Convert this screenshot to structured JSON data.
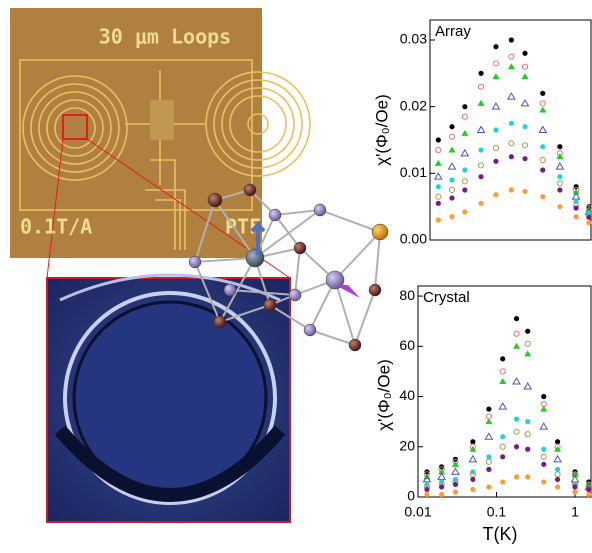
{
  "images": {
    "photo_labels": [
      "30 μm Loops",
      "0.1T/A",
      "PTF"
    ]
  },
  "chart_data": [
    {
      "type": "scatter",
      "annotation": "Array",
      "ylabel": "χ'(Φ₀/Oe)",
      "xscale": "log",
      "xlim": [
        0.01,
        1.6
      ],
      "ylim": [
        0,
        0.033
      ],
      "yticks": [
        {
          "value": 0,
          "label": "0.00"
        },
        {
          "value": 0.01,
          "label": "0.01"
        },
        {
          "value": 0.02,
          "label": "0.02"
        },
        {
          "value": 0.03,
          "label": "0.03"
        }
      ],
      "x": [
        0.013,
        0.02,
        0.03,
        0.05,
        0.08,
        0.13,
        0.2,
        0.35,
        0.6,
        1.0,
        1.5
      ],
      "series": [
        {
          "color": "#000000",
          "marker": "circle",
          "values": [
            0.015,
            0.017,
            0.02,
            0.025,
            0.029,
            0.03,
            0.028,
            0.022,
            0.014,
            0.008,
            0.005
          ]
        },
        {
          "color": "#e8707a",
          "marker": "circle-open",
          "values": [
            0.0135,
            0.0155,
            0.0185,
            0.023,
            0.0265,
            0.0275,
            0.026,
            0.0205,
            0.013,
            0.0075,
            0.0048
          ]
        },
        {
          "color": "#22cc22",
          "marker": "triangle",
          "values": [
            0.0115,
            0.0135,
            0.016,
            0.0205,
            0.0245,
            0.026,
            0.0245,
            0.0195,
            0.0125,
            0.0072,
            0.0046
          ]
        },
        {
          "color": "#5050c0",
          "marker": "triangle-open",
          "values": [
            0.0095,
            0.011,
            0.013,
            0.0165,
            0.02,
            0.0215,
            0.0205,
            0.0165,
            0.011,
            0.0065,
            0.0042
          ]
        },
        {
          "color": "#22d0e0",
          "marker": "circle",
          "values": [
            0.008,
            0.009,
            0.0105,
            0.0135,
            0.0165,
            0.0175,
            0.017,
            0.014,
            0.0095,
            0.0058,
            0.004
          ]
        },
        {
          "color": "#a0a050",
          "marker": "circle-open",
          "values": [
            0.0065,
            0.0075,
            0.0088,
            0.0112,
            0.0138,
            0.0145,
            0.0142,
            0.012,
            0.0085,
            0.0052,
            0.0036
          ]
        },
        {
          "color": "#7a1a8a",
          "marker": "circle",
          "values": [
            0.0055,
            0.0063,
            0.0075,
            0.0095,
            0.0118,
            0.0125,
            0.0122,
            0.0105,
            0.0075,
            0.0048,
            0.0034
          ]
        },
        {
          "color": "#ff9933",
          "marker": "circle",
          "values": [
            0.003,
            0.0035,
            0.0042,
            0.0055,
            0.0068,
            0.0075,
            0.0073,
            0.0065,
            0.005,
            0.0035,
            0.0026
          ]
        }
      ]
    },
    {
      "type": "scatter",
      "annotation": "Crystal",
      "ylabel": "χ'(Φ₀/Oe)",
      "xlabel": "T(K)",
      "xscale": "log",
      "xlim": [
        0.01,
        1.6
      ],
      "ylim": [
        0,
        84
      ],
      "xticks": [
        0.01,
        0.1,
        1
      ],
      "yticks": [
        0,
        20,
        40,
        60,
        80
      ],
      "x": [
        0.013,
        0.02,
        0.03,
        0.05,
        0.08,
        0.12,
        0.18,
        0.25,
        0.4,
        0.6,
        1.0,
        1.5
      ],
      "series": [
        {
          "color": "#000000",
          "marker": "circle",
          "values": [
            10,
            12,
            15,
            22,
            35,
            55,
            71,
            66,
            40,
            22,
            10,
            6
          ]
        },
        {
          "color": "#e8707a",
          "marker": "circle-open",
          "values": [
            9,
            11,
            14,
            20,
            32,
            50,
            65,
            61,
            37,
            20,
            9,
            5
          ]
        },
        {
          "color": "#22cc22",
          "marker": "triangle",
          "values": [
            8,
            10,
            13,
            19,
            30,
            46,
            60,
            57,
            35,
            19,
            9,
            5
          ]
        },
        {
          "color": "#5050c0",
          "marker": "triangle-open",
          "values": [
            7,
            8,
            10,
            15,
            24,
            36,
            46,
            44,
            28,
            15,
            7,
            4
          ]
        },
        {
          "color": "#22d0e0",
          "marker": "circle",
          "values": [
            5,
            6,
            7,
            10,
            16,
            24,
            31,
            30,
            19,
            11,
            5,
            3
          ]
        },
        {
          "color": "#a0a050",
          "marker": "circle-open",
          "values": [
            4,
            5,
            6,
            9,
            14,
            20,
            26,
            25,
            16,
            9,
            5,
            3
          ]
        },
        {
          "color": "#7a1a8a",
          "marker": "circle",
          "values": [
            3,
            4,
            5,
            7,
            11,
            16,
            20,
            19,
            13,
            7,
            4,
            3
          ]
        },
        {
          "color": "#ff9933",
          "marker": "circle",
          "values": [
            1,
            1,
            2,
            3,
            4,
            6,
            8,
            8,
            6,
            4,
            2,
            1
          ]
        }
      ]
    }
  ]
}
